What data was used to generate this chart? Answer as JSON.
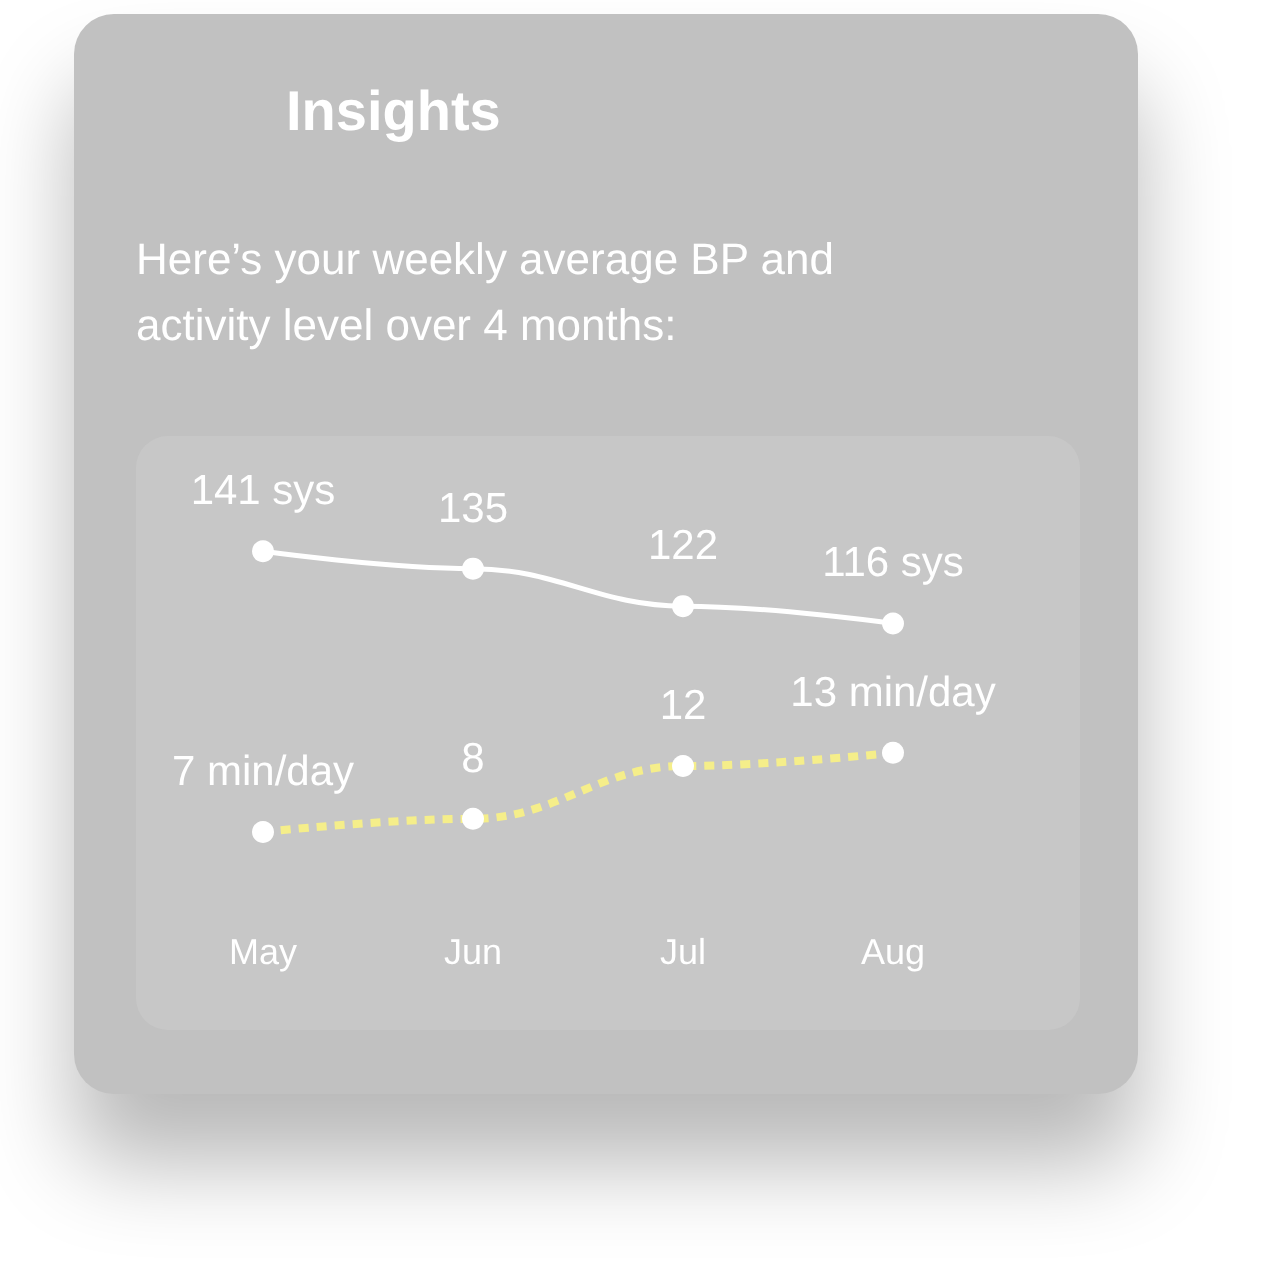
{
  "chart_data": {
    "type": "line",
    "title": "Insights",
    "subtitle": "Here’s your weekly average BP and activity level over 4 months:",
    "categories": [
      "May",
      "Jun",
      "Jul",
      "Aug"
    ],
    "series": [
      {
        "color": "#ffffff",
        "values": [
          141,
          135,
          122,
          116
        ],
        "value_labels": [
          "141 sys",
          "135",
          "122",
          "116 sys"
        ],
        "line_style": "solid"
      },
      {
        "color": "#f5ee8a",
        "values": [
          7,
          8,
          12,
          13
        ],
        "value_labels": [
          "7 min/day",
          "8",
          "12",
          "13 min/day"
        ],
        "axis": "y2",
        "line_style": "dotted"
      }
    ],
    "ylim": [
      -25,
      181
    ],
    "y2lim": [
      -8,
      37
    ],
    "tick_labels": "x",
    "grid": false,
    "marker": "circle"
  }
}
